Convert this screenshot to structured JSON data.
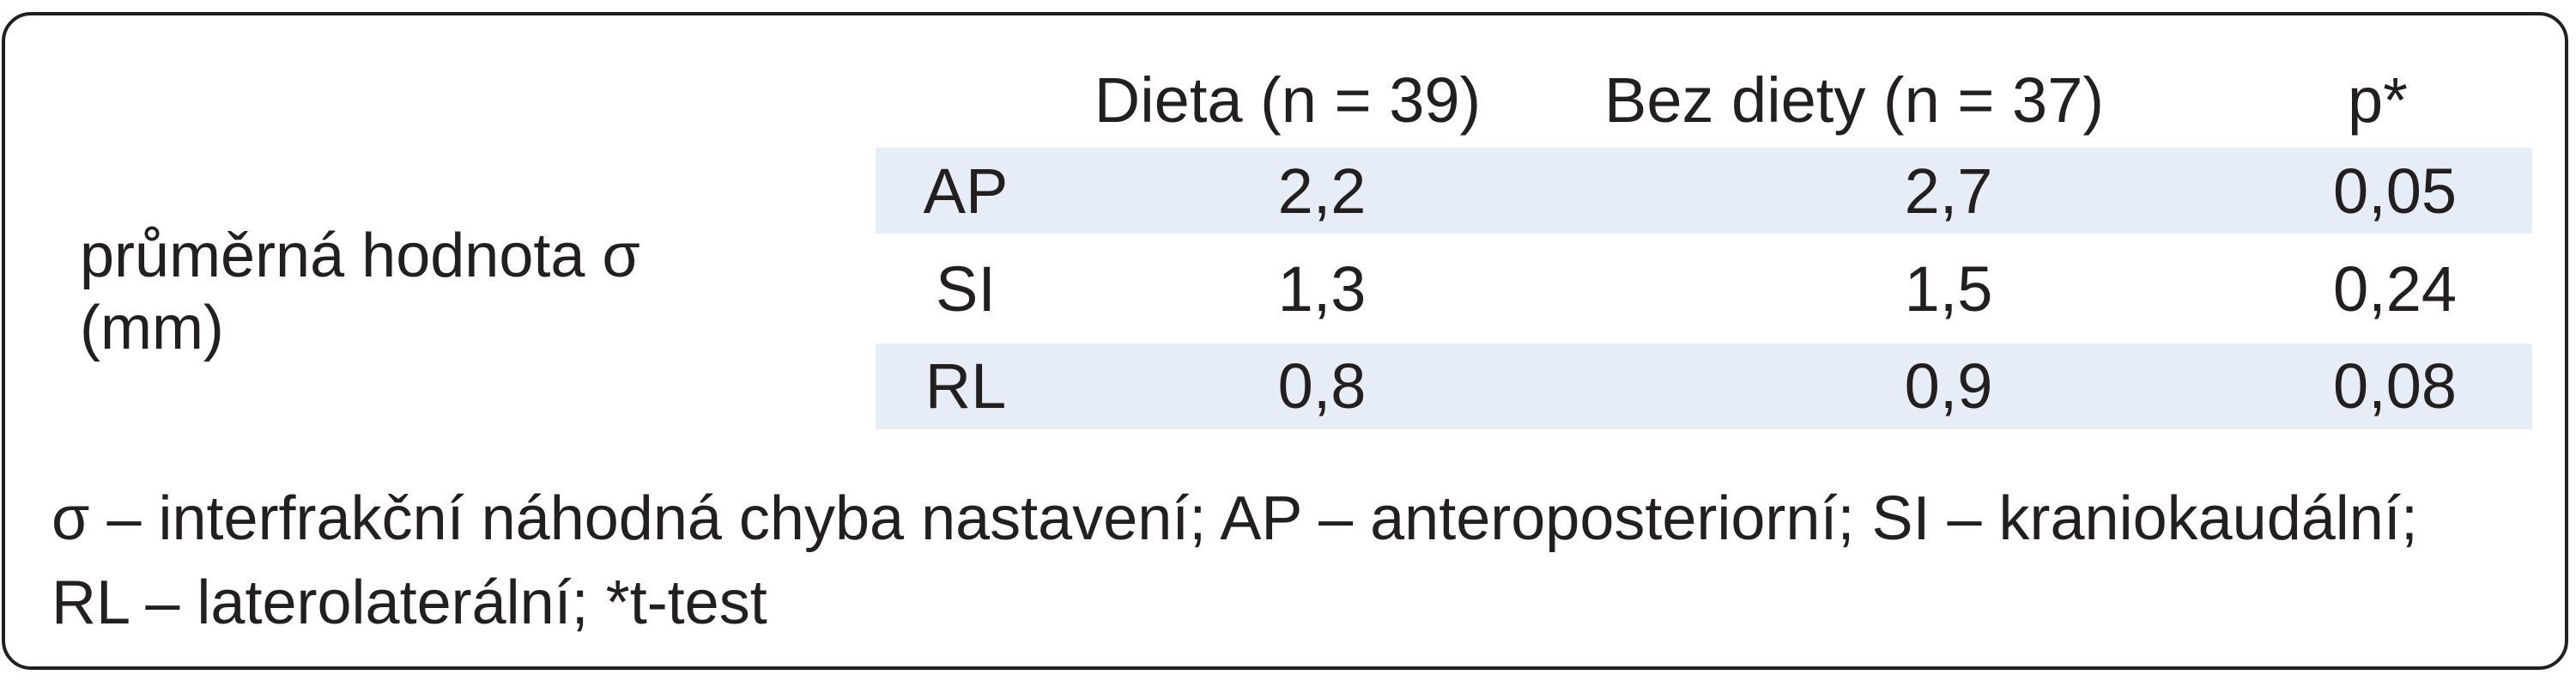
{
  "table": {
    "headers": {
      "col_diet": "Dieta (n = 39)",
      "col_no_diet": "Bez diety (n = 37)",
      "col_p": "p*"
    },
    "row_group_label_line1": "průměrná hodnota σ",
    "row_group_label_line2": "(mm)",
    "rows": [
      {
        "axis": "AP",
        "diet": "2,2",
        "no_diet": "2,7",
        "p": "0,05"
      },
      {
        "axis": "SI",
        "diet": "1,3",
        "no_diet": "1,5",
        "p": "0,24"
      },
      {
        "axis": "RL",
        "diet": "0,8",
        "no_diet": "0,9",
        "p": "0,08"
      }
    ],
    "band_color": "#e6edf7"
  },
  "footnote": {
    "line1": "σ – interfrakční náhodná chyba nastavení; AP – anteroposteriorní; SI – kraniokaudální;",
    "line2": "RL – laterolaterální; *t-test"
  }
}
